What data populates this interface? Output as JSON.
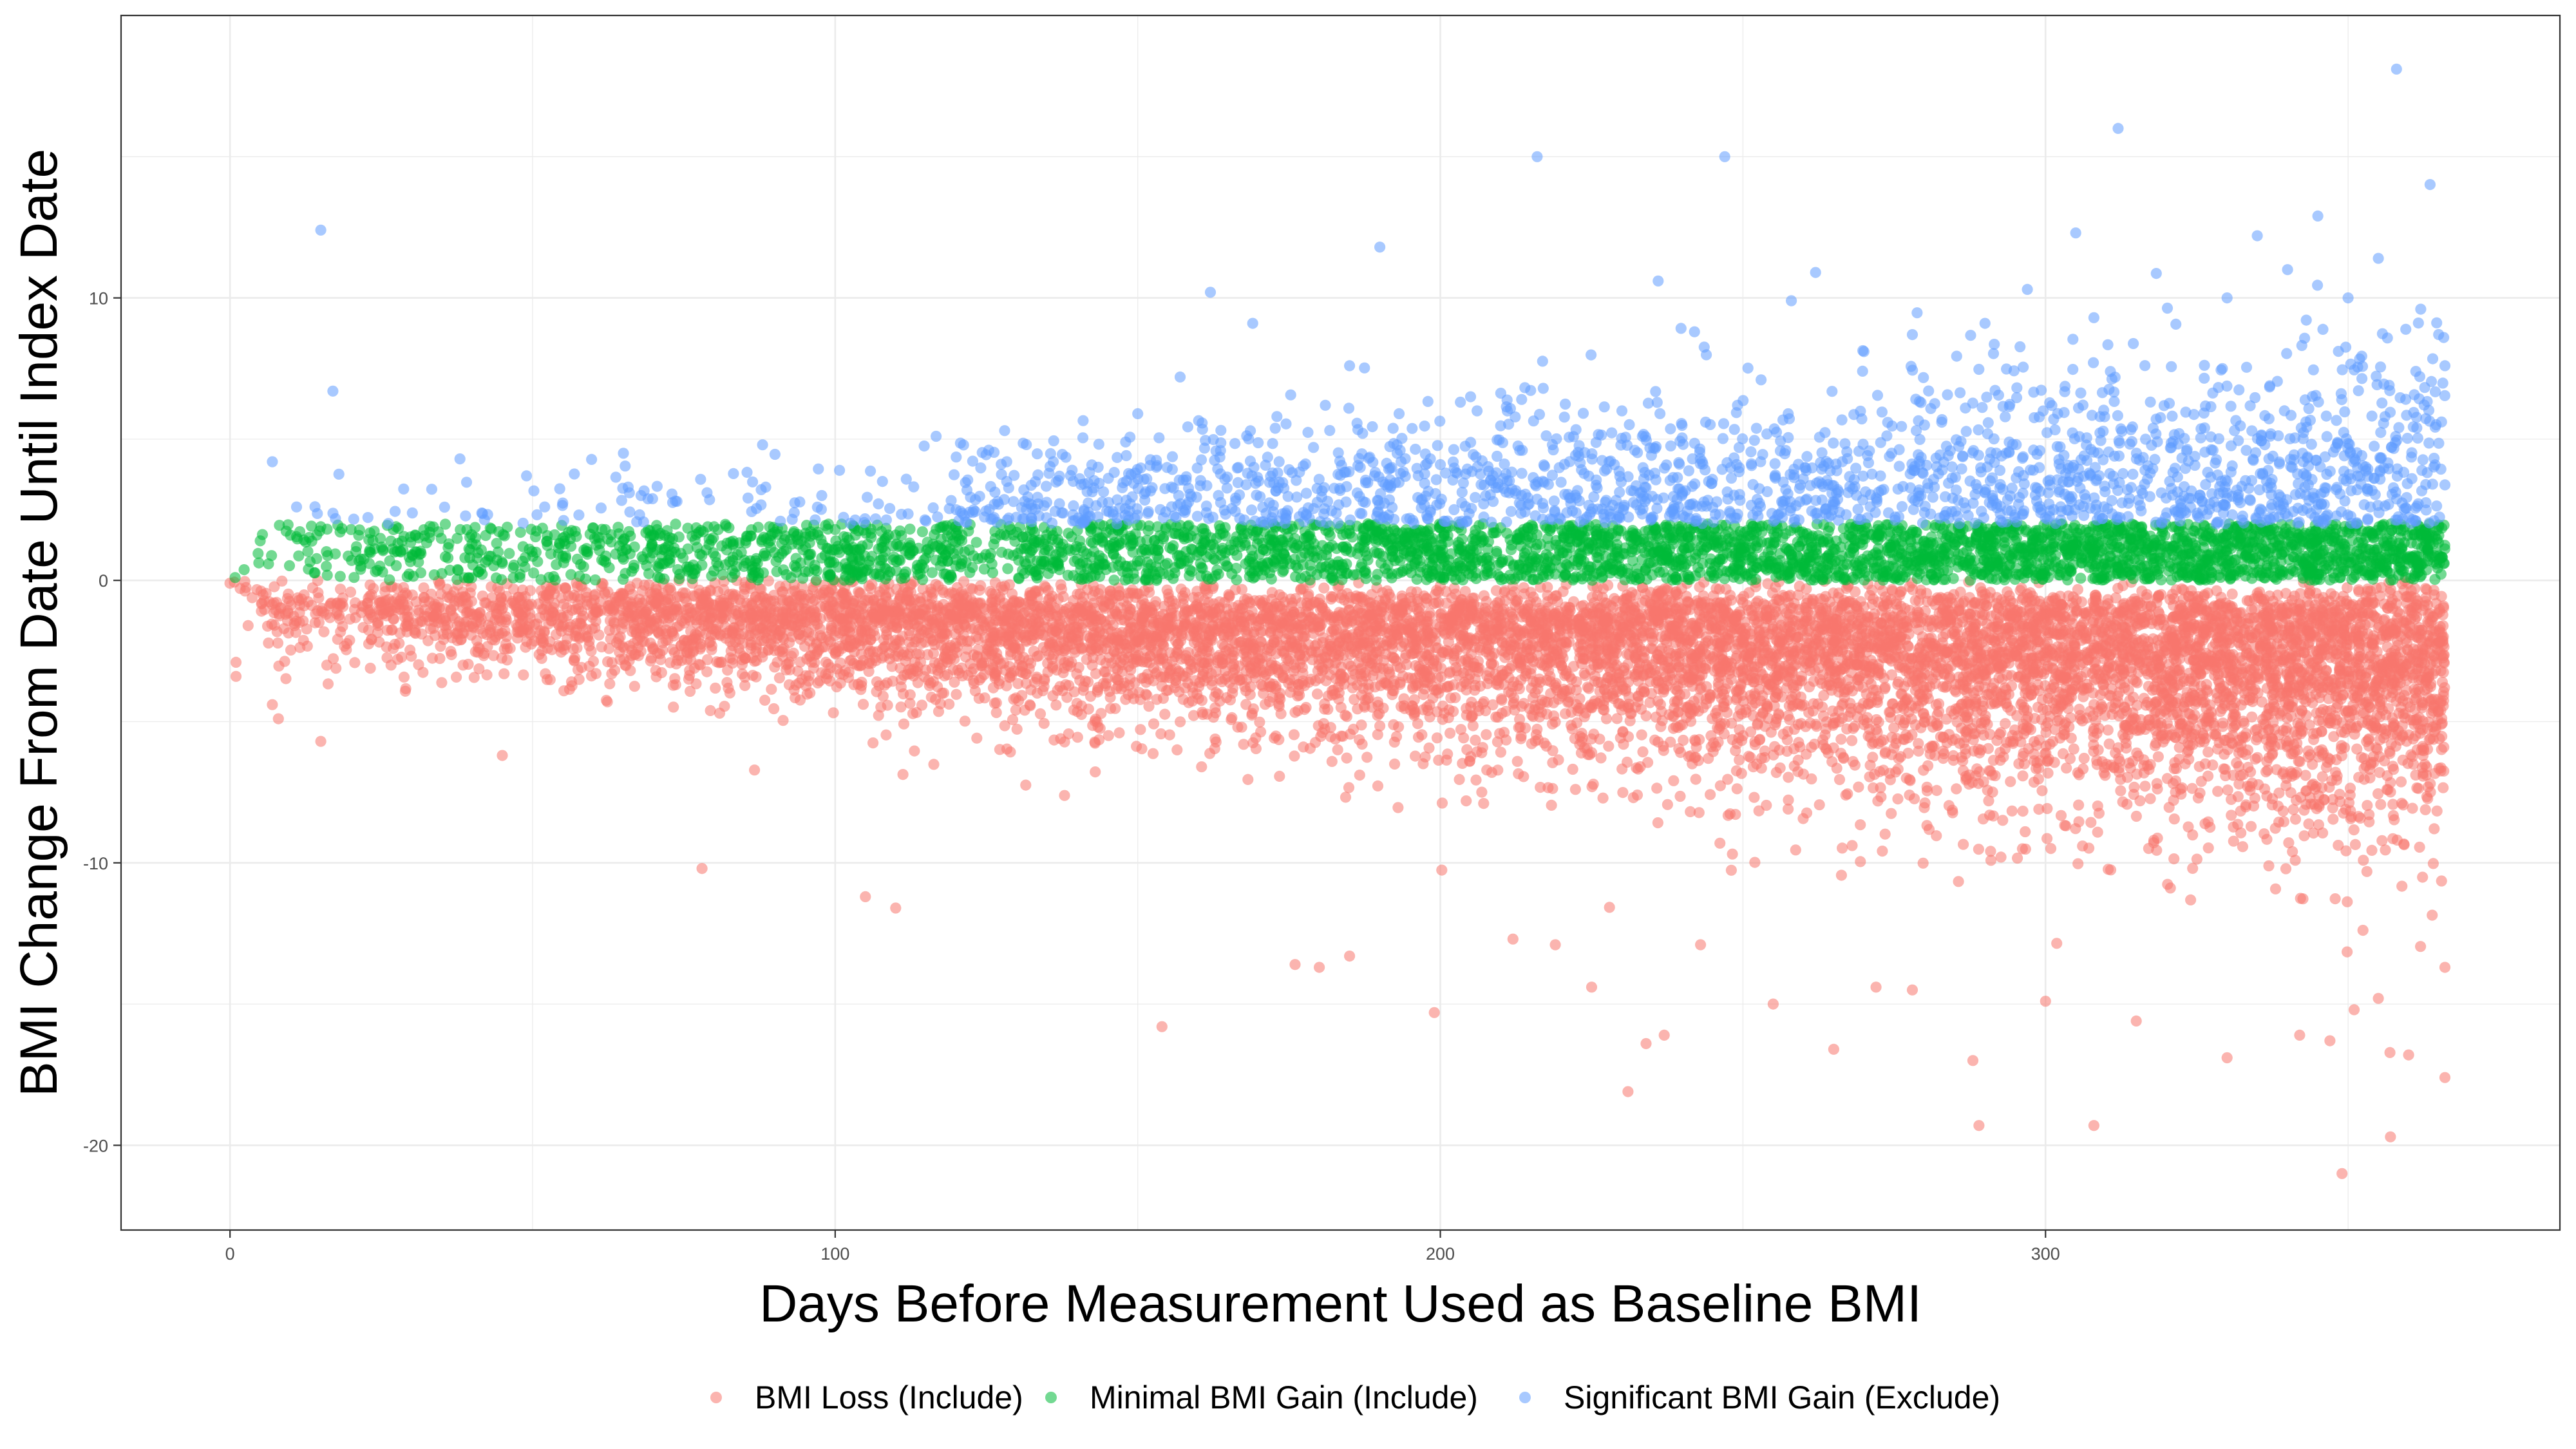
{
  "chart_data": {
    "type": "scatter",
    "title": "",
    "xlabel": "Days Before Measurement Used as Baseline BMI",
    "ylabel": "BMI Change From Date Until Index Date",
    "xlim": [
      -18,
      385
    ],
    "ylim": [
      -23,
      20
    ],
    "x_ticks": [
      0,
      100,
      200,
      300
    ],
    "x_tick_labels": [
      "0",
      "100",
      "200",
      "300"
    ],
    "y_ticks": [
      -20,
      -10,
      0,
      10
    ],
    "y_tick_labels": [
      "-20",
      "-10",
      "0",
      "10"
    ],
    "grid": true,
    "legend_position": "bottom",
    "point_opacity": 0.55,
    "series": [
      {
        "name": "BMI Loss (Include)",
        "color": "#F8766D",
        "rule": "change <= 0",
        "points": [
          [
            0,
            -0.1
          ],
          [
            1,
            -2.9
          ],
          [
            1,
            -3.4
          ],
          [
            3,
            -1.6
          ],
          [
            7,
            -4.4
          ],
          [
            8,
            -4.9
          ],
          [
            15,
            -5.7
          ],
          [
            16,
            -3.0
          ],
          [
            45,
            -6.2
          ],
          [
            78,
            -10.2
          ],
          [
            105,
            -11.2
          ],
          [
            110,
            -11.6
          ],
          [
            154,
            -15.8
          ],
          [
            176,
            -13.6
          ],
          [
            180,
            -13.7
          ],
          [
            185,
            -13.3
          ],
          [
            199,
            -15.3
          ],
          [
            212,
            -12.7
          ],
          [
            219,
            -12.9
          ],
          [
            225,
            -14.4
          ],
          [
            231,
            -18.1
          ],
          [
            234,
            -16.4
          ],
          [
            237,
            -16.1
          ],
          [
            243,
            -12.9
          ],
          [
            255,
            -15.0
          ],
          [
            265,
            -16.6
          ],
          [
            272,
            -14.4
          ],
          [
            278,
            -14.5
          ],
          [
            288,
            -17.0
          ],
          [
            289,
            -19.3
          ],
          [
            300,
            -14.9
          ],
          [
            308,
            -19.3
          ],
          [
            315,
            -15.6
          ],
          [
            330,
            -16.9
          ],
          [
            342,
            -16.1
          ],
          [
            347,
            -16.3
          ],
          [
            349,
            -21.0
          ],
          [
            351,
            -15.2
          ],
          [
            355,
            -14.8
          ],
          [
            357,
            -19.7
          ],
          [
            360,
            -16.8
          ],
          [
            366,
            -13.7
          ],
          [
            366,
            -17.6
          ]
        ]
      },
      {
        "name": "Minimal BMI Gain (Include)",
        "color": "#00BA38",
        "rule": "0 < change <= 2",
        "points": [
          [
            5,
            1.4
          ],
          [
            10,
            1.6
          ],
          [
            15,
            1.9
          ],
          [
            20,
            1.8
          ],
          [
            27,
            1.8
          ],
          [
            33,
            1.7
          ],
          [
            40,
            1.3
          ],
          [
            48,
            1.7
          ],
          [
            55,
            1.5
          ],
          [
            62,
            1.8
          ],
          [
            70,
            1.6
          ],
          [
            80,
            1.9
          ],
          [
            90,
            1.7
          ],
          [
            100,
            1.8
          ],
          [
            110,
            1.6
          ],
          [
            120,
            1.9
          ],
          [
            130,
            1.7
          ]
        ]
      },
      {
        "name": "Significant BMI Gain (Exclude)",
        "color": "#619CFF",
        "rule": "change > 2",
        "points": [
          [
            7,
            4.2
          ],
          [
            11,
            2.6
          ],
          [
            15,
            12.4
          ],
          [
            17,
            6.7
          ],
          [
            38,
            4.3
          ],
          [
            49,
            3.7
          ],
          [
            52,
            2.6
          ],
          [
            65,
            4.5
          ],
          [
            66,
            3.1
          ],
          [
            88,
            4.8
          ],
          [
            115,
            2.1
          ],
          [
            120,
            2.5
          ],
          [
            128,
            5.3
          ],
          [
            148,
            4.9
          ],
          [
            150,
            5.9
          ],
          [
            157,
            7.2
          ],
          [
            162,
            10.2
          ],
          [
            169,
            9.1
          ],
          [
            173,
            5.8
          ],
          [
            181,
            6.2
          ],
          [
            185,
            7.6
          ],
          [
            190,
            11.8
          ],
          [
            200,
            4.1
          ],
          [
            205,
            6.5
          ],
          [
            216,
            15.0
          ],
          [
            217,
            6.8
          ],
          [
            230,
            6.0
          ],
          [
            236,
            10.6
          ],
          [
            242,
            8.8
          ],
          [
            247,
            15.0
          ],
          [
            253,
            7.1
          ],
          [
            258,
            9.9
          ],
          [
            262,
            10.9
          ],
          [
            270,
            8.1
          ],
          [
            278,
            8.7
          ],
          [
            290,
            9.1
          ],
          [
            297,
            10.3
          ],
          [
            305,
            12.3
          ],
          [
            308,
            9.3
          ],
          [
            312,
            16.0
          ],
          [
            330,
            10.0
          ],
          [
            335,
            12.2
          ],
          [
            340,
            11.0
          ],
          [
            345,
            12.9
          ],
          [
            350,
            10.0
          ],
          [
            355,
            11.4
          ],
          [
            358,
            18.1
          ],
          [
            362,
            9.6
          ],
          [
            366,
            7.6
          ]
        ]
      }
    ],
    "density": {
      "n_points": 15000,
      "x_range": [
        0,
        366
      ],
      "x_skew": 1.6,
      "jitter_seed": 20231
    }
  }
}
